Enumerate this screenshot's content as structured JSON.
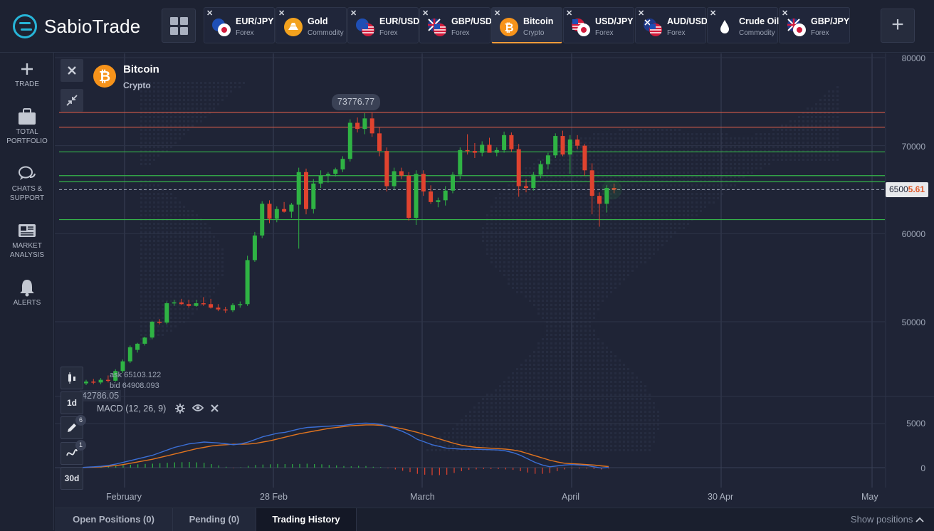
{
  "brand": {
    "name": "SabioTrade"
  },
  "tabs": [
    {
      "name": "EUR/JPY",
      "category": "Forex",
      "icon": "eu-jp-flags-icon",
      "active": false
    },
    {
      "name": "Gold",
      "category": "Commodity",
      "icon": "gold-icon",
      "active": false
    },
    {
      "name": "EUR/USD",
      "category": "Forex",
      "icon": "eu-us-flags-icon",
      "active": false
    },
    {
      "name": "GBP/USD",
      "category": "Forex",
      "icon": "gb-us-flags-icon",
      "active": false
    },
    {
      "name": "Bitcoin",
      "category": "Crypto",
      "icon": "bitcoin-icon",
      "active": true
    },
    {
      "name": "USD/JPY",
      "category": "Forex",
      "icon": "us-jp-flags-icon",
      "active": false
    },
    {
      "name": "AUD/USD",
      "category": "Forex",
      "icon": "au-us-flags-icon",
      "active": false
    },
    {
      "name": "Crude Oil",
      "category": "Commodity",
      "icon": "oil-drop-icon",
      "active": false
    },
    {
      "name": "GBP/JPY",
      "category": "Forex",
      "icon": "gb-jp-flags-icon",
      "active": false
    }
  ],
  "sidebar": [
    {
      "label1": "TRADE",
      "label2": "",
      "icon": "plus-icon"
    },
    {
      "label1": "TOTAL",
      "label2": "PORTFOLIO",
      "icon": "briefcase-icon"
    },
    {
      "label1": "CHATS &",
      "label2": "SUPPORT",
      "icon": "chat-icon"
    },
    {
      "label1": "MARKET",
      "label2": "ANALYSIS",
      "icon": "newspaper-icon"
    },
    {
      "label1": "ALERTS",
      "label2": "",
      "icon": "bell-icon"
    }
  ],
  "asset": {
    "name": "Bitcoin",
    "category": "Crypto"
  },
  "chart": {
    "high_label": "73776.77",
    "low_label": "42786.05",
    "price_main": "6500",
    "price_tail": "5.61",
    "ask_label": "ask",
    "ask_value": "65103.122",
    "bid_label": "bid",
    "bid_value": "64908.093",
    "y_labels": [
      "80000",
      "70000",
      "60000",
      "50000"
    ],
    "x_labels": [
      "February",
      "28 Feb",
      "March",
      "April",
      "30 Apr",
      "May"
    ],
    "macd_title": "MACD (12, 26, 9)",
    "macd_y_labels": [
      "5000",
      "0"
    ],
    "timeframes": [
      "1d",
      "30d"
    ],
    "drawing_badge": "6",
    "indicator_badge": "1"
  },
  "chart_data": {
    "type": "candlestick",
    "ylim": [
      40000,
      80000
    ],
    "candles": [
      [
        43000,
        43400,
        42800,
        43200
      ],
      [
        43200,
        43500,
        42900,
        43100
      ],
      [
        43100,
        43600,
        42900,
        43400
      ],
      [
        43400,
        43900,
        43100,
        43300
      ],
      [
        43300,
        44600,
        43200,
        44400
      ],
      [
        44400,
        45700,
        44200,
        45500
      ],
      [
        45500,
        47300,
        45300,
        47100
      ],
      [
        46800,
        47600,
        46500,
        47500
      ],
      [
        47500,
        48300,
        47300,
        48200
      ],
      [
        48200,
        50100,
        48000,
        50000
      ],
      [
        50000,
        50300,
        49700,
        49900
      ],
      [
        49900,
        52300,
        49700,
        52100
      ],
      [
        52100,
        52500,
        51800,
        52200
      ],
      [
        52200,
        52600,
        51900,
        52000
      ],
      [
        52000,
        52500,
        51600,
        51800
      ],
      [
        51800,
        52500,
        51700,
        52100
      ],
      [
        52100,
        52800,
        51800,
        52000
      ],
      [
        52000,
        52600,
        51500,
        51600
      ],
      [
        51600,
        52000,
        51200,
        51400
      ],
      [
        51400,
        51700,
        51000,
        51300
      ],
      [
        51300,
        52100,
        51100,
        51900
      ],
      [
        51900,
        52300,
        51600,
        52000
      ],
      [
        52000,
        57500,
        51800,
        57000
      ],
      [
        57000,
        60200,
        56800,
        59800
      ],
      [
        59800,
        63700,
        59500,
        63400
      ],
      [
        63400,
        63800,
        61200,
        61700
      ],
      [
        61700,
        63100,
        61300,
        62800
      ],
      [
        62800,
        63600,
        62400,
        62500
      ],
      [
        62500,
        63500,
        61800,
        63300
      ],
      [
        63300,
        67500,
        58300,
        67000
      ],
      [
        67000,
        67400,
        62200,
        62800
      ],
      [
        62800,
        66200,
        62300,
        65700
      ],
      [
        65700,
        67200,
        65200,
        66600
      ],
      [
        66600,
        67000,
        65800,
        66800
      ],
      [
        66800,
        67500,
        66500,
        67300
      ],
      [
        67300,
        68800,
        67000,
        68500
      ],
      [
        68500,
        73000,
        68200,
        72600
      ],
      [
        72600,
        73200,
        71500,
        71900
      ],
      [
        71900,
        73700,
        71300,
        73100
      ],
      [
        73100,
        73776.77,
        71000,
        71400
      ],
      [
        71400,
        72100,
        68800,
        69400
      ],
      [
        69400,
        69800,
        64800,
        65400
      ],
      [
        65400,
        67500,
        65000,
        67100
      ],
      [
        67100,
        67500,
        66200,
        66600
      ],
      [
        66600,
        67000,
        61500,
        61800
      ],
      [
        61800,
        67200,
        61000,
        66800
      ],
      [
        66800,
        67200,
        64300,
        64800
      ],
      [
        64800,
        65500,
        63400,
        63600
      ],
      [
        63600,
        64100,
        63000,
        63800
      ],
      [
        63800,
        65400,
        63200,
        64900
      ],
      [
        64900,
        67000,
        64600,
        66700
      ],
      [
        66700,
        69800,
        66200,
        69500
      ],
      [
        69500,
        71300,
        69000,
        69400
      ],
      [
        69400,
        70300,
        68600,
        69200
      ],
      [
        69200,
        70500,
        68800,
        70100
      ],
      [
        70100,
        70900,
        69200,
        69200
      ],
      [
        69200,
        69800,
        68800,
        69500
      ],
      [
        69500,
        71600,
        69200,
        71200
      ],
      [
        71200,
        71500,
        69300,
        69600
      ],
      [
        69600,
        70200,
        64200,
        65400
      ],
      [
        65400,
        66200,
        64700,
        65200
      ],
      [
        65200,
        67000,
        64900,
        66700
      ],
      [
        66700,
        68300,
        66300,
        67900
      ],
      [
        67900,
        69200,
        67300,
        68900
      ],
      [
        68900,
        71400,
        68600,
        71100
      ],
      [
        71100,
        71700,
        68800,
        69000
      ],
      [
        69000,
        71200,
        66800,
        70700
      ],
      [
        70700,
        71200,
        69600,
        70000
      ],
      [
        70000,
        70200,
        66600,
        67200
      ],
      [
        67200,
        68000,
        62200,
        64300
      ],
      [
        64300,
        64700,
        60800,
        63400
      ],
      [
        63400,
        65500,
        62400,
        65200
      ],
      [
        65200,
        65700,
        64600,
        65005.61
      ]
    ],
    "horizontal_levels": [
      {
        "value": 73776.77,
        "color": "#d65a4a"
      },
      {
        "value": 72100,
        "color": "#d65a4a"
      },
      {
        "value": 69300,
        "color": "#36b54a"
      },
      {
        "value": 66600,
        "color": "#36b54a"
      },
      {
        "value": 65900,
        "color": "#36b54a"
      },
      {
        "value": 65005.61,
        "color": "#8f96a8"
      },
      {
        "value": 61600,
        "color": "#36b54a"
      }
    ],
    "macd_ylim": [
      -1800,
      5800
    ],
    "macd_line": [
      0,
      50,
      100,
      150,
      250,
      400,
      600,
      800,
      1000,
      1200,
      1400,
      1700,
      2000,
      2300,
      2500,
      2700,
      2800,
      2900,
      2850,
      2800,
      2700,
      2600,
      2700,
      2900,
      3200,
      3500,
      3700,
      3900,
      4000,
      4200,
      4400,
      4550,
      4600,
      4650,
      4700,
      4750,
      4800,
      4900,
      5000,
      5050,
      5000,
      4900,
      4700,
      4400,
      4100,
      3700,
      3200,
      2900,
      2600,
      2400,
      2200,
      2150,
      2100,
      2100,
      2080,
      2050,
      2030,
      2000,
      1900,
      1700,
      1400,
      1000,
      600,
      300,
      100,
      200,
      300,
      350,
      300,
      250,
      100,
      -50,
      50
    ],
    "signal_line": [
      0,
      30,
      60,
      100,
      150,
      230,
      350,
      500,
      650,
      800,
      950,
      1150,
      1350,
      1550,
      1750,
      1950,
      2150,
      2300,
      2450,
      2550,
      2600,
      2650,
      2650,
      2680,
      2750,
      2900,
      3050,
      3250,
      3450,
      3650,
      3850,
      4000,
      4150,
      4300,
      4450,
      4550,
      4650,
      4750,
      4800,
      4850,
      4850,
      4800,
      4700,
      4550,
      4400,
      4200,
      4000,
      3750,
      3500,
      3250,
      3000,
      2750,
      2550,
      2400,
      2300,
      2250,
      2200,
      2150,
      2100,
      2000,
      1850,
      1600,
      1350,
      1100,
      850,
      650,
      500,
      450,
      400,
      350,
      300,
      200,
      120
    ],
    "histogram": [
      10,
      30,
      50,
      70,
      120,
      200,
      280,
      330,
      380,
      420,
      450,
      500,
      550,
      600,
      620,
      640,
      600,
      550,
      400,
      250,
      100,
      -50,
      50,
      200,
      300,
      350,
      380,
      420,
      400,
      400,
      420,
      450,
      400,
      380,
      300,
      250,
      180,
      150,
      200,
      180,
      100,
      60,
      -50,
      -200,
      -350,
      -500,
      -700,
      -800,
      -850,
      -850,
      -800,
      -600,
      -400,
      -250,
      -200,
      -150,
      -150,
      -150,
      -200,
      -250,
      -400,
      -550,
      -700,
      -700,
      -600,
      -400,
      -200,
      -100,
      -100,
      -100,
      -150,
      -200,
      -100
    ]
  }
}
